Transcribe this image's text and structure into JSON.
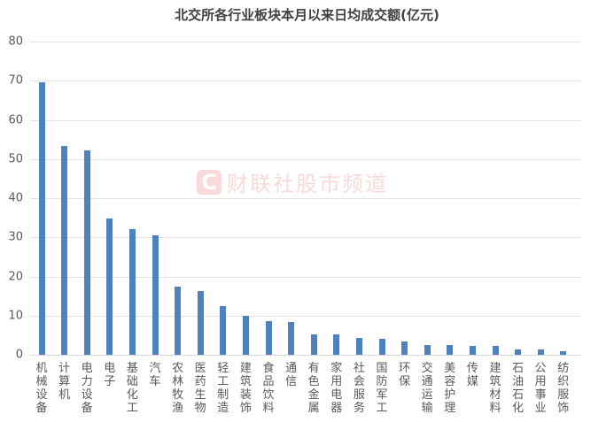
{
  "chart_data": {
    "type": "bar",
    "title": "北交所各行业板块本月以来日均成交额(亿元)",
    "xlabel": "",
    "ylabel": "",
    "ylim": [
      0,
      80
    ],
    "yticks": [
      0,
      10,
      20,
      30,
      40,
      50,
      60,
      70,
      80
    ],
    "grid": true,
    "legend": null,
    "bar_color": "#4f81bd",
    "categories": [
      "机械设备",
      "计算机",
      "电力设备",
      "电子",
      "基础化工",
      "汽车",
      "农林牧渔",
      "医药生物",
      "轻工制造",
      "建筑装饰",
      "食品饮料",
      "通信",
      "有色金属",
      "家用电器",
      "社会服务",
      "国防军工",
      "环保",
      "交通运输",
      "美容护理",
      "传媒",
      "建筑材料",
      "石油石化",
      "公用事业",
      "纺织服饰"
    ],
    "values": [
      69.6,
      53.3,
      52.1,
      34.9,
      32.1,
      30.6,
      17.3,
      16.2,
      12.5,
      10.0,
      8.7,
      8.4,
      5.2,
      5.2,
      4.4,
      4.0,
      3.4,
      2.5,
      2.4,
      2.2,
      2.2,
      1.3,
      1.3,
      0.8
    ]
  },
  "watermark": {
    "icon": "C",
    "text": "财联社股市频道"
  }
}
